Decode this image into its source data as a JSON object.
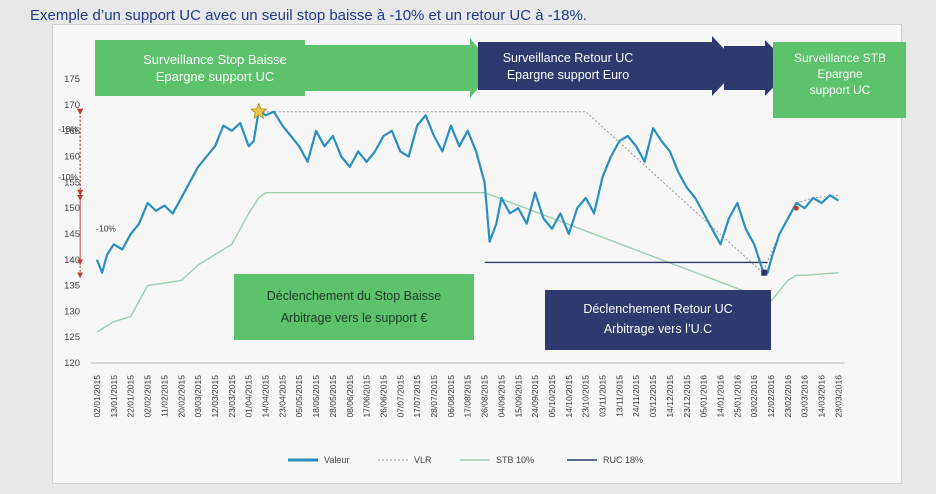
{
  "title": "Exemple d’un support UC avec  un seuil stop baisse à -10% et un retour UC à -18%.",
  "colors": {
    "valeur": "#2a8fc0",
    "vlr": "#999999",
    "stb": "#9fcfb0",
    "ruc": "#2e3a6e",
    "green_box": "#5cc26b",
    "navy_box": "#2e3a6e",
    "annotation_red": "#c0392b"
  },
  "phases": [
    {
      "lines": [
        "Surveillance Stop Baisse",
        "Epargne support UC"
      ]
    },
    {
      "lines": [
        "Surveillance Retour UC",
        "Epargne support Euro"
      ]
    },
    {
      "lines": [
        "Surveillance STB",
        "Epargne",
        "support UC"
      ]
    }
  ],
  "events": [
    {
      "lines": [
        "Déclenchement  du Stop Baisse",
        "Arbitrage vers le support €"
      ]
    },
    {
      "lines": [
        "Déclenchement  Retour UC",
        "Arbitrage vers l’U.C"
      ]
    }
  ],
  "annotations": [
    {
      "label": "-10%",
      "date": "13/06/2015",
      "from": 168.7,
      "to": 153.0
    },
    {
      "label": "-18%",
      "date": "21/10/2015",
      "from": 168.7,
      "to": 139.5
    },
    {
      "label": "-10%",
      "date": "05/03/2016",
      "from": 152.0,
      "to": 137.0
    }
  ],
  "chart_data": {
    "type": "line",
    "title": "",
    "xlabel": "",
    "ylabel": "",
    "ylim": [
      120,
      175
    ],
    "yticks": [
      120,
      125,
      130,
      135,
      140,
      145,
      150,
      155,
      160,
      165,
      170,
      175
    ],
    "xticks": [
      "02/01/2015",
      "13/01/2015",
      "22/01/2015",
      "02/02/2015",
      "11/02/2015",
      "20/02/2015",
      "03/03/2015",
      "12/03/2015",
      "23/03/2015",
      "01/04/2015",
      "14/04/2015",
      "23/04/2015",
      "05/05/2015",
      "18/05/2015",
      "28/05/2015",
      "08/06/2015",
      "17/06/2015",
      "26/06/2015",
      "07/07/2015",
      "17/07/2015",
      "28/07/2015",
      "06/08/2015",
      "17/08/2015",
      "26/08/2015",
      "04/09/2015",
      "15/09/2015",
      "24/09/2015",
      "05/10/2015",
      "14/10/2015",
      "23/10/2015",
      "03/11/2015",
      "13/11/2015",
      "24/11/2015",
      "03/12/2015",
      "14/12/2015",
      "23/12/2015",
      "05/01/2016",
      "14/01/2016",
      "25/01/2016",
      "03/02/2016",
      "12/02/2016",
      "23/02/2016",
      "03/03/2016",
      "14/03/2016",
      "23/03/2016"
    ],
    "grid": false,
    "legend_position": "bottom",
    "series": [
      {
        "name": "Valeur",
        "style": "solid",
        "points": [
          [
            0,
            140
          ],
          [
            0.3,
            137.5
          ],
          [
            0.6,
            141
          ],
          [
            1,
            143
          ],
          [
            1.5,
            142
          ],
          [
            2,
            145
          ],
          [
            2.5,
            147
          ],
          [
            3,
            151
          ],
          [
            3.5,
            149.5
          ],
          [
            4,
            150.5
          ],
          [
            4.5,
            149
          ],
          [
            5,
            152
          ],
          [
            5.5,
            155
          ],
          [
            6,
            158
          ],
          [
            6.5,
            160
          ],
          [
            7,
            162
          ],
          [
            7.5,
            166
          ],
          [
            8,
            165
          ],
          [
            8.5,
            166.5
          ],
          [
            9,
            162
          ],
          [
            9.3,
            163
          ],
          [
            9.6,
            169
          ],
          [
            10,
            168
          ],
          [
            10.5,
            168.7
          ],
          [
            11,
            166
          ],
          [
            11.5,
            164
          ],
          [
            12,
            162
          ],
          [
            12.5,
            159
          ],
          [
            13,
            165
          ],
          [
            13.5,
            162
          ],
          [
            14,
            164
          ],
          [
            14.5,
            160
          ],
          [
            15,
            158
          ],
          [
            15.5,
            161
          ],
          [
            16,
            159
          ],
          [
            16.5,
            161
          ],
          [
            17,
            164
          ],
          [
            17.5,
            165
          ],
          [
            18,
            161
          ],
          [
            18.5,
            160
          ],
          [
            19,
            166
          ],
          [
            19.5,
            168
          ],
          [
            20,
            164
          ],
          [
            20.5,
            161
          ],
          [
            21,
            166
          ],
          [
            21.5,
            162
          ],
          [
            22,
            165
          ],
          [
            22.5,
            161
          ],
          [
            23,
            155
          ],
          [
            23.3,
            143.5
          ],
          [
            23.7,
            147
          ],
          [
            24,
            152
          ],
          [
            24.5,
            149
          ],
          [
            25,
            150
          ],
          [
            25.5,
            147
          ],
          [
            26,
            153
          ],
          [
            26.5,
            148
          ],
          [
            27,
            146
          ],
          [
            27.5,
            149
          ],
          [
            28,
            145
          ],
          [
            28.5,
            150
          ],
          [
            29,
            152
          ],
          [
            29.5,
            149
          ],
          [
            30,
            156
          ],
          [
            30.5,
            160
          ],
          [
            31,
            163
          ],
          [
            31.5,
            164
          ],
          [
            32,
            162
          ],
          [
            32.5,
            159
          ],
          [
            33,
            165.5
          ],
          [
            33.5,
            163
          ],
          [
            34,
            161
          ],
          [
            34.5,
            157
          ],
          [
            35,
            154
          ],
          [
            35.5,
            152
          ],
          [
            36,
            149
          ],
          [
            36.5,
            146
          ],
          [
            37,
            143
          ],
          [
            37.5,
            148
          ],
          [
            38,
            151
          ],
          [
            38.5,
            146
          ],
          [
            39,
            143
          ],
          [
            39.5,
            138
          ],
          [
            39.8,
            137.5
          ],
          [
            40,
            140
          ],
          [
            40.5,
            145
          ],
          [
            41,
            148
          ],
          [
            41.5,
            151
          ],
          [
            42,
            150
          ],
          [
            42.5,
            152
          ],
          [
            43,
            151
          ],
          [
            43.5,
            152.5
          ],
          [
            44,
            151.5
          ]
        ]
      },
      {
        "name": "VLR",
        "style": "dotted",
        "points": [
          [
            9.6,
            168.7
          ],
          [
            23,
            168.7
          ],
          [
            29,
            168.7
          ],
          [
            39.5,
            137.5
          ],
          [
            40.5,
            145
          ],
          [
            41.5,
            151
          ],
          [
            42.5,
            152
          ],
          [
            44,
            152.5
          ]
        ]
      },
      {
        "name": "STB  10%",
        "style": "solid",
        "points": [
          [
            0,
            126
          ],
          [
            0.5,
            127
          ],
          [
            1,
            128
          ],
          [
            2,
            129
          ],
          [
            3,
            135
          ],
          [
            4,
            135.5
          ],
          [
            5,
            136
          ],
          [
            6,
            139
          ],
          [
            7,
            141
          ],
          [
            8,
            143
          ],
          [
            9,
            149
          ],
          [
            9.6,
            152
          ],
          [
            10,
            153
          ],
          [
            23,
            153
          ],
          [
            40,
            132
          ],
          [
            40.5,
            134
          ],
          [
            41,
            136
          ],
          [
            41.5,
            137
          ],
          [
            42,
            137
          ],
          [
            44,
            137.5
          ]
        ]
      },
      {
        "name": "RUC  18%",
        "style": "solid",
        "points": [
          [
            23,
            139.5
          ],
          [
            39.8,
            139.5
          ]
        ]
      }
    ]
  }
}
